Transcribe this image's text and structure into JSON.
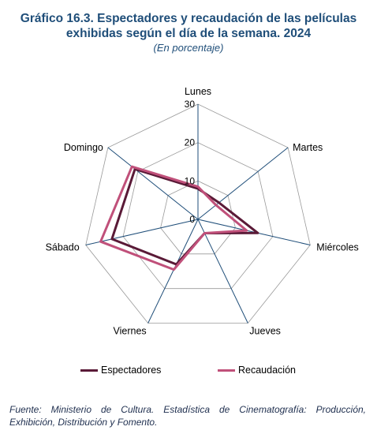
{
  "header": {
    "title_line1": "Gráfico 16.3. Espectadores y recaudación de las películas",
    "title_line2": "exhibidas según el día de la semana. 2024",
    "subtitle": "(En porcentaje)"
  },
  "chart_data": {
    "type": "radar",
    "categories": [
      "Lunes",
      "Martes",
      "Miércoles",
      "Jueves",
      "Viernes",
      "Sábado",
      "Domingo"
    ],
    "scale": {
      "min": 0,
      "max": 30,
      "ticks": [
        0,
        10,
        20,
        30
      ]
    },
    "series": [
      {
        "name": "Espectadores",
        "color": "#5a1a37",
        "values": [
          8.0,
          7.0,
          16.0,
          4.0,
          13.0,
          23.0,
          21.0
        ]
      },
      {
        "name": "Recaudación",
        "color": "#c0507a",
        "values": [
          8.5,
          6.0,
          13.0,
          4.0,
          14.5,
          26.0,
          22.0
        ]
      }
    ],
    "grid": true,
    "legend_position": "bottom"
  },
  "source": {
    "text": "Fuente: Ministerio de Cultura. Estadística de Cinematografía: Producción, Exhibición, Distribución y Fomento."
  },
  "colors": {
    "title": "#1f4e79",
    "grid": "#999999",
    "axis": "#1f4e79"
  }
}
